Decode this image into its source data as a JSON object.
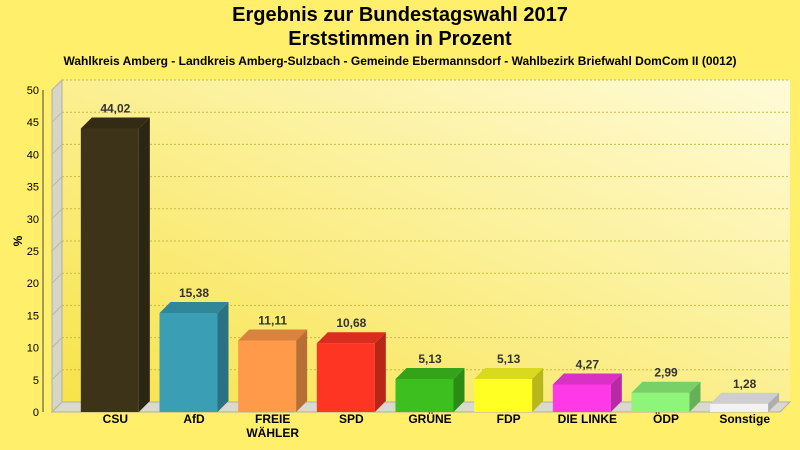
{
  "chart_data": {
    "type": "bar",
    "title": "Ergebnis zur Bundestagswahl 2017",
    "subtitle": "Erststimmen in Prozent",
    "caption": "Wahlkreis Amberg - Landkreis Amberg-Sulzbach - Gemeinde Ebermannsdorf - Wahlbezirk Briefwahl DomCom II (0012)",
    "ylabel": "%",
    "xlabel": "",
    "ylim": [
      0,
      50
    ],
    "yticks": [
      0,
      5,
      10,
      15,
      20,
      25,
      30,
      35,
      40,
      45,
      50
    ],
    "grid": true,
    "legend": "none",
    "categories": [
      "CSU",
      "AfD",
      "FREIE WÄHLER",
      "SPD",
      "GRÜNE",
      "FDP",
      "DIE LINKE",
      "ÖDP",
      "Sonstige"
    ],
    "category_lines": [
      [
        "CSU"
      ],
      [
        "AfD"
      ],
      [
        "FREIE",
        "WÄHLER"
      ],
      [
        "SPD"
      ],
      [
        "GRÜNE"
      ],
      [
        "FDP"
      ],
      [
        "DIE LINKE"
      ],
      [
        "ÖDP"
      ],
      [
        "Sonstige"
      ]
    ],
    "values": [
      44.02,
      15.38,
      11.11,
      10.68,
      5.13,
      5.13,
      4.27,
      2.99,
      1.28
    ],
    "value_labels": [
      "44,02",
      "15,38",
      "11,11",
      "10,68",
      "5,13",
      "5,13",
      "4,27",
      "2,99",
      "1,28"
    ],
    "colors": [
      "#3c3318",
      "#3a9fb5",
      "#ff9a4a",
      "#ff3524",
      "#3dc01f",
      "#ffff24",
      "#ff39e8",
      "#8cf57a",
      "#f2f2f2"
    ],
    "background_color": "#ffef6a"
  }
}
